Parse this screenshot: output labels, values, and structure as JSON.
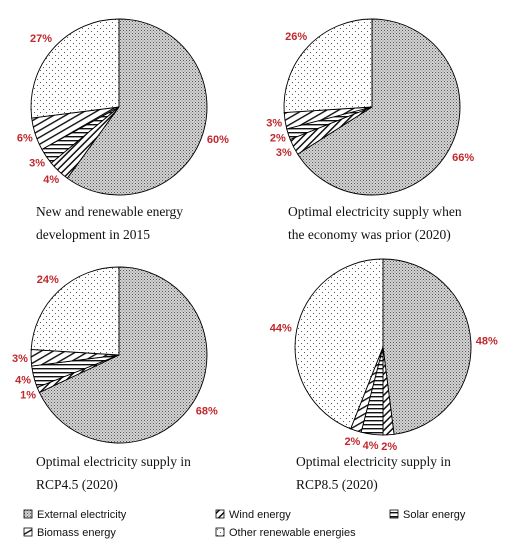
{
  "chart_data": [
    {
      "type": "pie",
      "caption": [
        "New and renewable energy",
        "development in 2015"
      ],
      "slices": [
        {
          "category": "External electricity",
          "value": 60,
          "label": "60%"
        },
        {
          "category": "Wind energy",
          "value": 4,
          "label": "4%"
        },
        {
          "category": "Solar energy",
          "value": 3,
          "label": "3%"
        },
        {
          "category": "Biomass energy",
          "value": 6,
          "label": "6%"
        },
        {
          "category": "Other renewable energies",
          "value": 27,
          "label": "27%"
        }
      ]
    },
    {
      "type": "pie",
      "caption": [
        "Optimal electricity supply when",
        "the economy was prior (2020)"
      ],
      "slices": [
        {
          "category": "External electricity",
          "value": 66,
          "label": "66%"
        },
        {
          "category": "Wind energy",
          "value": 3,
          "label": "3%"
        },
        {
          "category": "Solar energy",
          "value": 2,
          "label": "2%"
        },
        {
          "category": "Biomass energy",
          "value": 3,
          "label": "3%"
        },
        {
          "category": "Other renewable energies",
          "value": 26,
          "label": "26%"
        }
      ]
    },
    {
      "type": "pie",
      "caption": [
        "Optimal electricity supply in",
        "RCP4.5 (2020)"
      ],
      "slices": [
        {
          "category": "External electricity",
          "value": 68,
          "label": "68%"
        },
        {
          "category": "Wind energy",
          "value": 1,
          "label": "1%"
        },
        {
          "category": "Solar energy",
          "value": 4,
          "label": "4%"
        },
        {
          "category": "Biomass energy",
          "value": 3,
          "label": "3%"
        },
        {
          "category": "Other renewable energies",
          "value": 24,
          "label": "24%"
        }
      ]
    },
    {
      "type": "pie",
      "caption": [
        "Optimal electricity supply in",
        "RCP8.5 (2020)"
      ],
      "slices": [
        {
          "category": "External electricity",
          "value": 48,
          "label": "48%"
        },
        {
          "category": "Wind energy",
          "value": 2,
          "label": "2%"
        },
        {
          "category": "Solar energy",
          "value": 4,
          "label": "4%"
        },
        {
          "category": "Biomass energy",
          "value": 2,
          "label": "2%"
        },
        {
          "category": "Other renewable energies",
          "value": 44,
          "label": "44%"
        }
      ]
    }
  ],
  "legend": {
    "placement": "bottom",
    "items": [
      {
        "label": "External electricity",
        "pattern": "external"
      },
      {
        "label": "Wind energy",
        "pattern": "wind"
      },
      {
        "label": "Solar energy",
        "pattern": "solar"
      },
      {
        "label": "Biomass energy",
        "pattern": "biomass"
      },
      {
        "label": "Other renewable energies",
        "pattern": "other"
      }
    ]
  },
  "colors": {
    "percent_label": "#c0282d",
    "outline": "#000000",
    "background": "#ffffff"
  }
}
